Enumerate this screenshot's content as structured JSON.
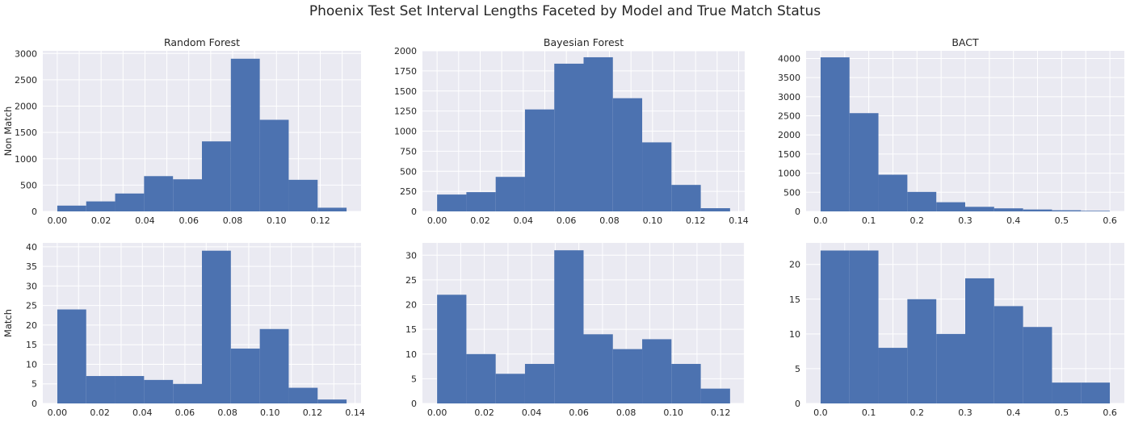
{
  "title": "Phoenix Test Set Interval Lengths Faceted by Model and True Match Status",
  "colors": {
    "bar": "#4c72b0",
    "panel_bg": "#eaeaf2",
    "grid": "#ffffff",
    "text": "#262626"
  },
  "chart_data": [
    {
      "type": "bar",
      "name": "random-forest-non-match",
      "title": "Random Forest",
      "ylabel": "Non Match",
      "xlabel": "",
      "xlim": [
        -0.0066,
        0.1386
      ],
      "ylim": [
        0,
        3050
      ],
      "xticks": [
        0.0,
        0.02,
        0.04,
        0.06,
        0.08,
        0.1,
        0.12
      ],
      "xtick_labels": [
        "0.00",
        "0.02",
        "0.04",
        "0.06",
        "0.08",
        "0.10",
        "0.12"
      ],
      "yticks": [
        0,
        500,
        1000,
        1500,
        2000,
        2500,
        3000
      ],
      "ytick_labels": [
        "0",
        "500",
        "1000",
        "1500",
        "2000",
        "2500",
        "3000"
      ],
      "bin_edges": [
        0.0,
        0.0132,
        0.0264,
        0.0396,
        0.0528,
        0.066,
        0.0792,
        0.0924,
        0.1056,
        0.1188,
        0.132
      ],
      "values": [
        110,
        190,
        340,
        670,
        610,
        1330,
        2900,
        1740,
        600,
        70
      ]
    },
    {
      "type": "bar",
      "name": "bayesian-forest-non-match",
      "title": "Bayesian Forest",
      "ylabel": "",
      "xlabel": "",
      "xlim": [
        -0.0068,
        0.1428
      ],
      "ylim": [
        0,
        2000
      ],
      "xticks": [
        0.0,
        0.02,
        0.04,
        0.06,
        0.08,
        0.1,
        0.12,
        0.14
      ],
      "xtick_labels": [
        "0.00",
        "0.02",
        "0.04",
        "0.06",
        "0.08",
        "0.10",
        "0.12",
        "0.14"
      ],
      "yticks": [
        0,
        250,
        500,
        750,
        1000,
        1250,
        1500,
        1750,
        2000
      ],
      "ytick_labels": [
        "0",
        "250",
        "500",
        "750",
        "1000",
        "1250",
        "1500",
        "1750",
        "2000"
      ],
      "bin_edges": [
        0.0,
        0.0136,
        0.0272,
        0.0408,
        0.0544,
        0.068,
        0.0816,
        0.0952,
        0.1088,
        0.1224,
        0.136
      ],
      "values": [
        210,
        240,
        430,
        1270,
        1840,
        1920,
        1410,
        860,
        330,
        40
      ]
    },
    {
      "type": "bar",
      "name": "bact-non-match",
      "title": "BACT",
      "ylabel": "",
      "xlabel": "",
      "xlim": [
        -0.03,
        0.63
      ],
      "ylim": [
        0,
        4200
      ],
      "xticks": [
        0.0,
        0.1,
        0.2,
        0.3,
        0.4,
        0.5,
        0.6
      ],
      "xtick_labels": [
        "0.0",
        "0.1",
        "0.2",
        "0.3",
        "0.4",
        "0.5",
        "0.6"
      ],
      "yticks": [
        0,
        500,
        1000,
        1500,
        2000,
        2500,
        3000,
        3500,
        4000
      ],
      "ytick_labels": [
        "0",
        "500",
        "1000",
        "1500",
        "2000",
        "2500",
        "3000",
        "3500",
        "4000"
      ],
      "bin_edges": [
        0.0,
        0.06,
        0.12,
        0.18,
        0.24,
        0.3,
        0.36,
        0.42,
        0.48,
        0.54,
        0.6
      ],
      "values": [
        4030,
        2570,
        960,
        510,
        240,
        120,
        80,
        50,
        30,
        15
      ]
    },
    {
      "type": "bar",
      "name": "random-forest-match",
      "title": "",
      "ylabel": "Match",
      "xlabel": "",
      "xlim": [
        -0.0068,
        0.1428
      ],
      "ylim": [
        0,
        41
      ],
      "xticks": [
        0.0,
        0.02,
        0.04,
        0.06,
        0.08,
        0.1,
        0.12,
        0.14
      ],
      "xtick_labels": [
        "0.00",
        "0.02",
        "0.04",
        "0.06",
        "0.08",
        "0.10",
        "0.12",
        "0.14"
      ],
      "yticks": [
        0,
        5,
        10,
        15,
        20,
        25,
        30,
        35,
        40
      ],
      "ytick_labels": [
        "0",
        "5",
        "10",
        "15",
        "20",
        "25",
        "30",
        "35",
        "40"
      ],
      "bin_edges": [
        0.0,
        0.0136,
        0.0272,
        0.0408,
        0.0544,
        0.068,
        0.0816,
        0.0952,
        0.1088,
        0.1224,
        0.136
      ],
      "values": [
        24,
        7,
        7,
        6,
        5,
        39,
        14,
        19,
        4,
        1
      ]
    },
    {
      "type": "bar",
      "name": "bayesian-forest-match",
      "title": "",
      "ylabel": "",
      "xlabel": "",
      "xlim": [
        -0.0062,
        0.1302
      ],
      "ylim": [
        0,
        32.5
      ],
      "xticks": [
        0.0,
        0.02,
        0.04,
        0.06,
        0.08,
        0.1,
        0.12
      ],
      "xtick_labels": [
        "0.00",
        "0.02",
        "0.04",
        "0.06",
        "0.08",
        "0.10",
        "0.12"
      ],
      "yticks": [
        0,
        5,
        10,
        15,
        20,
        25,
        30
      ],
      "ytick_labels": [
        "0",
        "5",
        "10",
        "15",
        "20",
        "25",
        "30"
      ],
      "bin_edges": [
        0.0,
        0.0124,
        0.0248,
        0.0372,
        0.0496,
        0.062,
        0.0744,
        0.0868,
        0.0992,
        0.1116,
        0.124
      ],
      "values": [
        22,
        10,
        6,
        8,
        31,
        14,
        11,
        13,
        8,
        3
      ]
    },
    {
      "type": "bar",
      "name": "bact-match",
      "title": "",
      "ylabel": "",
      "xlabel": "",
      "xlim": [
        -0.03,
        0.63
      ],
      "ylim": [
        0,
        23.1
      ],
      "xticks": [
        0.0,
        0.1,
        0.2,
        0.3,
        0.4,
        0.5,
        0.6
      ],
      "xtick_labels": [
        "0.0",
        "0.1",
        "0.2",
        "0.3",
        "0.4",
        "0.5",
        "0.6"
      ],
      "yticks": [
        0,
        5,
        10,
        15,
        20
      ],
      "ytick_labels": [
        "0",
        "5",
        "10",
        "15",
        "20"
      ],
      "bin_edges": [
        0.0,
        0.06,
        0.12,
        0.18,
        0.24,
        0.3,
        0.36,
        0.42,
        0.48,
        0.54,
        0.6
      ],
      "values": [
        22,
        22,
        8,
        15,
        10,
        18,
        14,
        11,
        3,
        3
      ]
    }
  ]
}
